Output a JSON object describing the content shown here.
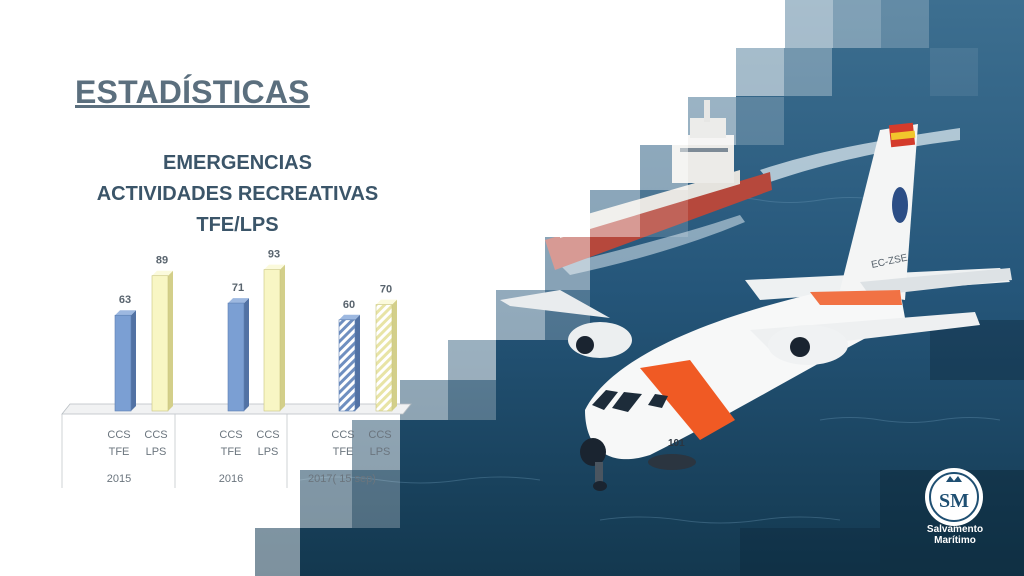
{
  "page": {
    "title": "ESTADÍSTICAS"
  },
  "logo": {
    "monogram": "SM",
    "caption_line1": "Salvamento",
    "caption_line2": "Marítimo"
  },
  "aircraft": {
    "registration": "EC-ZSE",
    "nose_number": "101"
  },
  "colors": {
    "title": "#5b6f7e",
    "heading": "#3b5569",
    "tfe_bar": "#7b9fd3",
    "lps_bar": "#f8f6c4",
    "sea": "#1f4f72"
  },
  "chart_data": {
    "type": "bar",
    "title_lines": [
      "EMERGENCIAS",
      "ACTIVIDADES RECREATIVAS",
      "TFE/LPS"
    ],
    "groups": [
      "2015",
      "2016",
      "2017( 15 sep)"
    ],
    "categories": [
      {
        "group": "2015",
        "line1": "CCS",
        "line2": "TFE",
        "value": 63,
        "series": "TFE",
        "partial": false
      },
      {
        "group": "2015",
        "line1": "CCS",
        "line2": "LPS",
        "value": 89,
        "series": "LPS",
        "partial": false
      },
      {
        "group": "2016",
        "line1": "CCS",
        "line2": "TFE",
        "value": 71,
        "series": "TFE",
        "partial": false
      },
      {
        "group": "2016",
        "line1": "CCS",
        "line2": "LPS",
        "value": 93,
        "series": "LPS",
        "partial": false
      },
      {
        "group": "2017( 15 sep)",
        "line1": "CCS",
        "line2": "TFE",
        "value": 60,
        "series": "TFE",
        "partial": true
      },
      {
        "group": "2017( 15 sep)",
        "line1": "CCS",
        "line2": "LPS",
        "value": 70,
        "series": "LPS",
        "partial": true
      }
    ],
    "ylim": [
      0,
      100
    ],
    "grid": false,
    "legend": "none"
  }
}
